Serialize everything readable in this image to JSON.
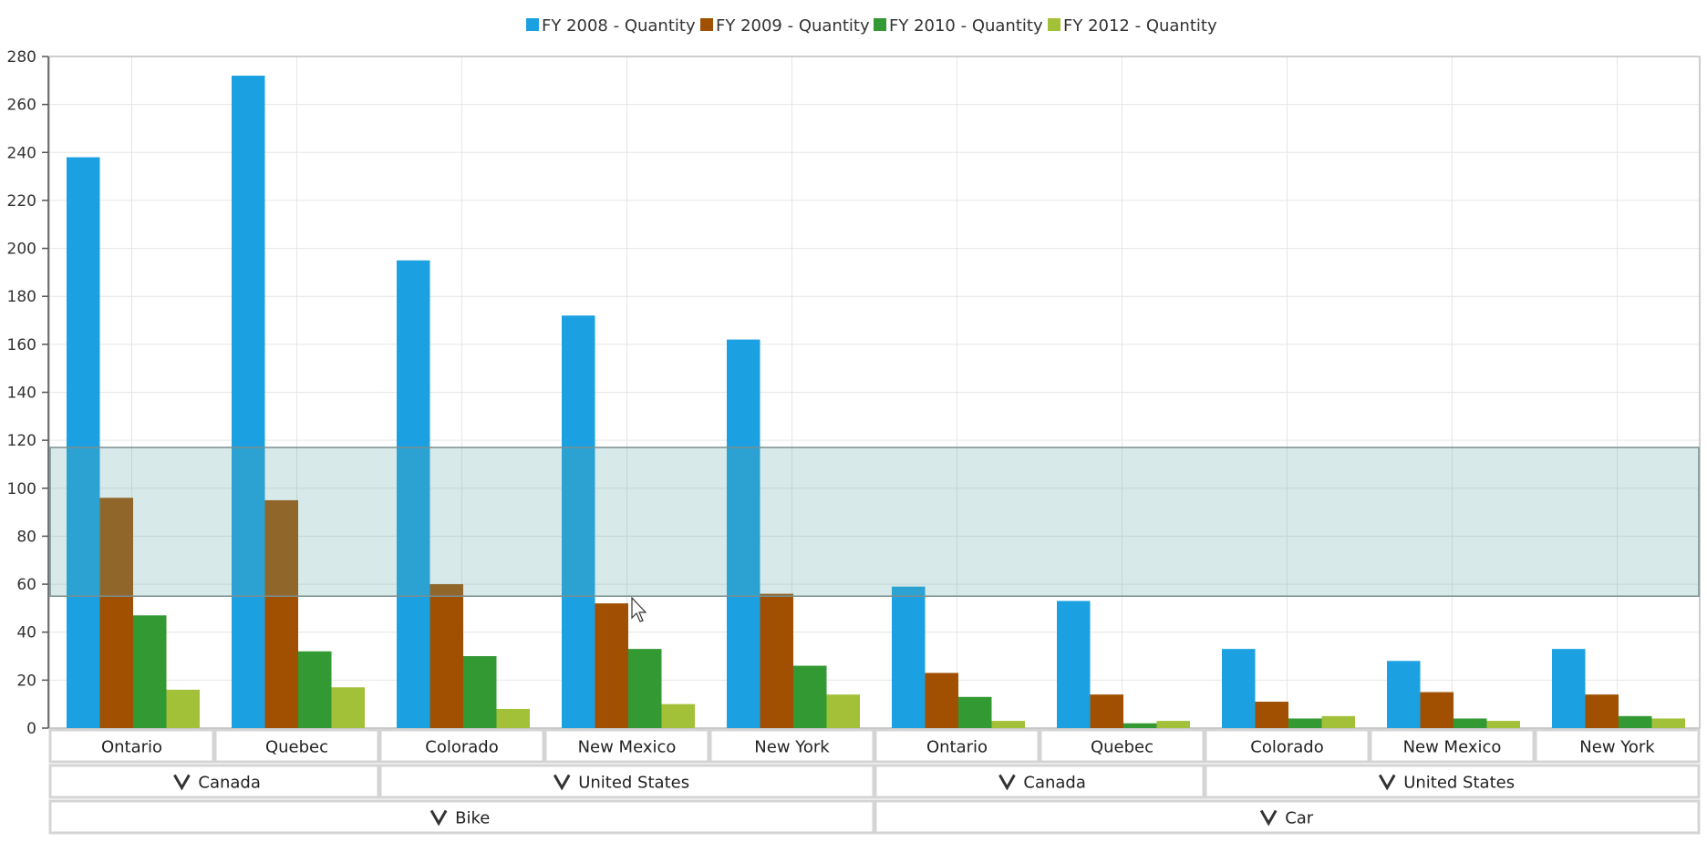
{
  "chart_data": {
    "type": "bar",
    "ylim": [
      0,
      280
    ],
    "y_ticks": [
      0,
      20,
      40,
      60,
      80,
      100,
      120,
      140,
      160,
      180,
      200,
      220,
      240,
      260,
      280
    ],
    "grid": true,
    "legend_position": "top-center",
    "categories": [
      "Ontario",
      "Quebec",
      "Colorado",
      "New Mexico",
      "New York",
      "Ontario",
      "Quebec",
      "Colorado",
      "New Mexico",
      "New York"
    ],
    "series": [
      {
        "name": "FY 2008 - Quantity",
        "color": "#1ba1e2",
        "values": [
          238,
          272,
          195,
          172,
          162,
          59,
          53,
          33,
          28,
          33
        ]
      },
      {
        "name": "FY 2009 - Quantity",
        "color": "#a05000",
        "values": [
          96,
          95,
          60,
          52,
          56,
          23,
          14,
          11,
          15,
          14
        ]
      },
      {
        "name": "FY 2010 - Quantity",
        "color": "#339933",
        "values": [
          47,
          32,
          30,
          33,
          26,
          13,
          2,
          4,
          4,
          5
        ]
      },
      {
        "name": "FY 2012 - Quantity",
        "color": "#a2c139",
        "values": [
          16,
          17,
          8,
          10,
          14,
          3,
          3,
          5,
          3,
          4
        ]
      }
    ],
    "axis_groups": {
      "level2": [
        {
          "label": "Canada",
          "span": 2
        },
        {
          "label": "United States",
          "span": 3
        },
        {
          "label": "Canada",
          "span": 2
        },
        {
          "label": "United States",
          "span": 3
        }
      ],
      "level3": [
        {
          "label": "Bike",
          "span": 5
        },
        {
          "label": "Car",
          "span": 5
        }
      ]
    },
    "selection_band": {
      "from": 55,
      "to": 117,
      "color": "#5fa9a9"
    }
  }
}
